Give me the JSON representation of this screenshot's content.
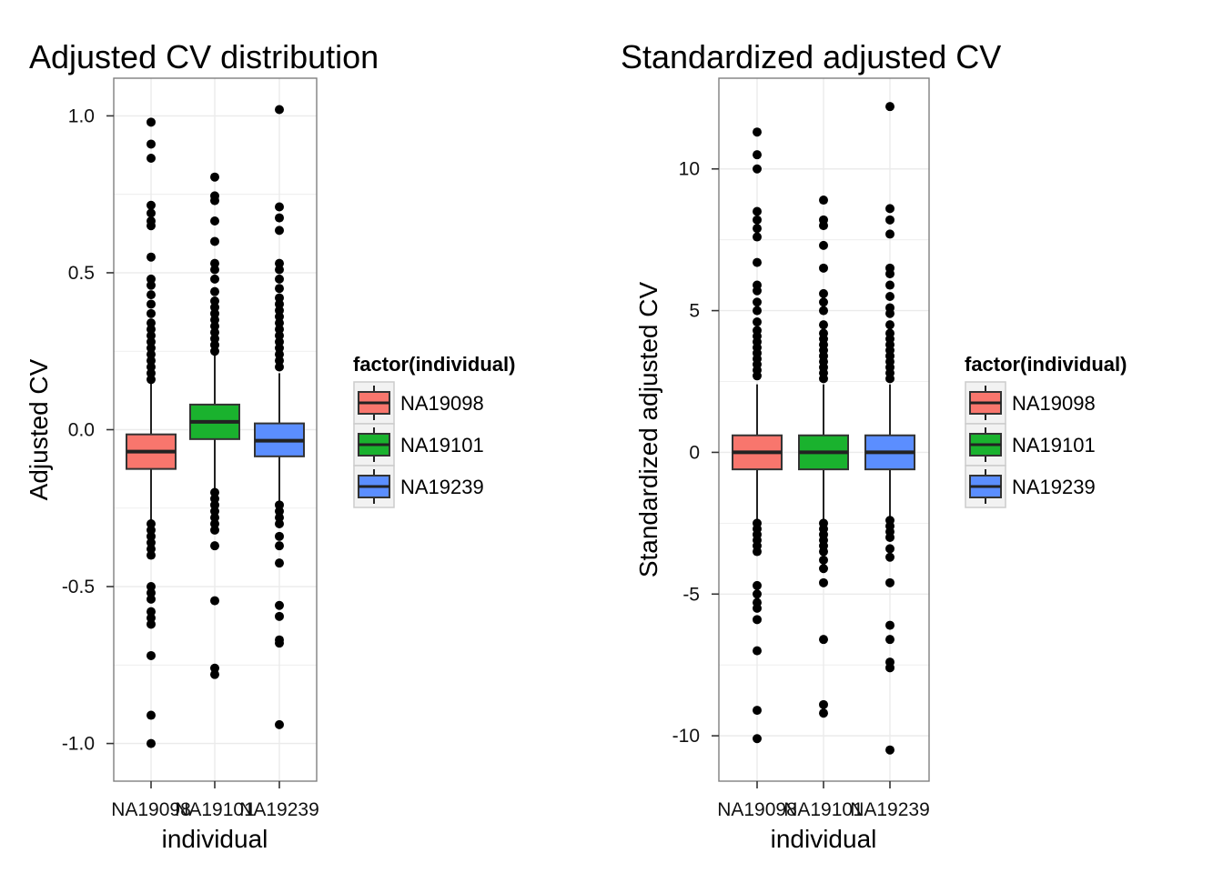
{
  "chart_data": [
    {
      "type": "boxplot",
      "title": "Adjusted CV distribution",
      "xlabel": "individual",
      "ylabel": "Adjusted CV",
      "ylim": [
        -1.12,
        1.12
      ],
      "yticks": [
        1.0,
        0.5,
        0.0,
        -0.5,
        -1.0
      ],
      "ytick_labels": [
        "1.0",
        "0.5",
        "0.0",
        "-0.5",
        "-1.0"
      ],
      "grid": true,
      "categories": [
        "NA19098",
        "NA19101",
        "NA19239"
      ],
      "boxes": [
        {
          "name": "NA19098",
          "q1": -0.125,
          "median": -0.07,
          "q3": -0.015,
          "whisker_low": -0.29,
          "whisker_high": 0.15
        },
        {
          "name": "NA19101",
          "q1": -0.03,
          "median": 0.025,
          "q3": 0.08,
          "whisker_low": -0.19,
          "whisker_high": 0.24
        },
        {
          "name": "NA19239",
          "q1": -0.085,
          "median": -0.035,
          "q3": 0.02,
          "whisker_low": -0.23,
          "whisker_high": 0.18
        }
      ],
      "outliers": [
        [
          0.98,
          0.91,
          0.865,
          0.715,
          0.69,
          0.665,
          0.65,
          0.55,
          0.48,
          0.46,
          0.43,
          0.4,
          0.37,
          0.34,
          0.32,
          0.3,
          0.28,
          0.26,
          0.24,
          0.22,
          0.2,
          0.18,
          0.16,
          -0.3,
          -0.32,
          -0.34,
          -0.36,
          -0.38,
          -0.4,
          -0.5,
          -0.52,
          -0.54,
          -0.58,
          -0.6,
          -0.62,
          -0.72,
          -0.91,
          -1.0
        ],
        [
          0.805,
          0.745,
          0.73,
          0.665,
          0.6,
          0.53,
          0.51,
          0.48,
          0.44,
          0.41,
          0.39,
          0.37,
          0.35,
          0.33,
          0.31,
          0.29,
          0.27,
          0.25,
          -0.2,
          -0.22,
          -0.24,
          -0.26,
          -0.28,
          -0.3,
          -0.32,
          -0.37,
          -0.545,
          -0.76,
          -0.78
        ],
        [
          1.02,
          0.71,
          0.675,
          0.635,
          0.53,
          0.51,
          0.48,
          0.45,
          0.42,
          0.4,
          0.38,
          0.36,
          0.34,
          0.32,
          0.3,
          0.28,
          0.26,
          0.24,
          0.22,
          0.2,
          -0.24,
          -0.26,
          -0.28,
          -0.3,
          -0.34,
          -0.37,
          -0.425,
          -0.56,
          -0.595,
          -0.67,
          -0.68,
          -0.94
        ]
      ],
      "legend": {
        "title": "factor(individual)",
        "entries": [
          "NA19098",
          "NA19101",
          "NA19239"
        ],
        "placement": "right"
      }
    },
    {
      "type": "boxplot",
      "title": "Standardized adjusted CV",
      "xlabel": "individual",
      "ylabel": "Standardized adjusted CV",
      "ylim": [
        -11.6,
        13.2
      ],
      "yticks": [
        10,
        5,
        0,
        -5,
        -10
      ],
      "ytick_labels": [
        "10",
        "5",
        "0",
        "-5",
        "-10"
      ],
      "grid": true,
      "categories": [
        "NA19098",
        "NA19101",
        "NA19239"
      ],
      "boxes": [
        {
          "name": "NA19098",
          "q1": -0.6,
          "median": 0.0,
          "q3": 0.6,
          "whisker_low": -2.4,
          "whisker_high": 2.4
        },
        {
          "name": "NA19101",
          "q1": -0.6,
          "median": 0.0,
          "q3": 0.6,
          "whisker_low": -2.4,
          "whisker_high": 2.4
        },
        {
          "name": "NA19239",
          "q1": -0.6,
          "median": 0.0,
          "q3": 0.6,
          "whisker_low": -2.4,
          "whisker_high": 2.4
        }
      ],
      "outliers": [
        [
          11.3,
          10.5,
          10.0,
          8.5,
          8.2,
          7.9,
          7.6,
          6.7,
          5.9,
          5.7,
          5.3,
          5.0,
          4.6,
          4.3,
          4.1,
          3.9,
          3.7,
          3.5,
          3.3,
          3.1,
          2.9,
          2.7,
          -2.5,
          -2.7,
          -2.9,
          -3.1,
          -3.3,
          -3.5,
          -4.7,
          -5.0,
          -5.3,
          -5.5,
          -5.9,
          -7.0,
          -9.1,
          -10.1
        ],
        [
          8.9,
          8.2,
          8.0,
          7.3,
          6.5,
          5.6,
          5.3,
          5.0,
          4.5,
          4.2,
          4.0,
          3.8,
          3.6,
          3.4,
          3.2,
          3.0,
          2.8,
          2.6,
          -2.5,
          -2.7,
          -2.9,
          -3.1,
          -3.3,
          -3.5,
          -3.8,
          -4.1,
          -4.6,
          -6.6,
          -8.9,
          -9.2
        ],
        [
          12.2,
          8.6,
          8.2,
          7.7,
          6.5,
          6.3,
          5.9,
          5.5,
          5.1,
          4.9,
          4.5,
          4.2,
          4.0,
          3.8,
          3.6,
          3.4,
          3.2,
          3.0,
          2.8,
          2.6,
          -2.4,
          -2.6,
          -2.8,
          -3.0,
          -3.4,
          -3.7,
          -4.6,
          -6.1,
          -6.6,
          -7.4,
          -7.6,
          -10.5
        ]
      ],
      "legend": {
        "title": "factor(individual)",
        "entries": [
          "NA19098",
          "NA19101",
          "NA19239"
        ],
        "placement": "right"
      }
    }
  ],
  "colors": {
    "NA19098": "#F8766D",
    "NA19101": "#1AB22E",
    "NA19239": "#5B8EFF",
    "panel_bg": "#FFFFFF",
    "panel_border": "#7F7F7F",
    "grid": "#EBEBEB"
  }
}
